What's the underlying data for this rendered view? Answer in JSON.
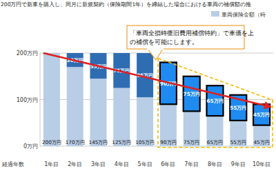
{
  "chart_data": {
    "type": "bar",
    "title": "200万円で新車を購入し、同月に新規契約（保険期間1年）を締結した場合における車両の補償額の推",
    "x_label": "経過年数",
    "categories": [
      "1年目",
      "2年目",
      "3年目",
      "4年目",
      "5年目",
      "6年目",
      "7年目",
      "8年目",
      "9年目",
      "10年目"
    ],
    "series": [
      {
        "name": "車両保険金額（時",
        "color": "#b8cde6",
        "values": [
          200,
          170,
          145,
          125,
          105,
          90,
          75,
          65,
          55,
          45
        ],
        "value_labels": [
          "200万円",
          "170万円",
          "145万円",
          "125万円",
          "105万円",
          "90万円",
          "75万円",
          "65万円",
          "55万円",
          "45万円"
        ]
      },
      {
        "colors": [
          "#2f6db3",
          "#2f6db3",
          "#2f6db3",
          "#2f6db3",
          "#2f6db3",
          "#1f8bf0",
          "#1f8bf0",
          "#1f8bf0",
          "#1f8bf0",
          "#1f8bf0"
        ],
        "values": [
          0,
          30,
          55,
          75,
          95,
          90,
          75,
          65,
          55,
          45
        ],
        "value_labels": [
          null,
          "30万円",
          "55万円",
          "75万円",
          "95万円",
          "90万円",
          "75万円",
          "65万円",
          "55万円",
          "45万円"
        ]
      }
    ],
    "ylim": [
      0,
      200
    ],
    "yticks": [
      {
        "value": 0,
        "label": "0万円"
      },
      {
        "value": 100,
        "label": "100万円"
      },
      {
        "value": 200,
        "label": "200万円"
      }
    ],
    "grid": true,
    "stacked": true,
    "data_labels": true,
    "legend": "top-right",
    "annotations": [
      "「車両全損時復旧費用補償特約」で車価を上",
      "の補償を可能にします。"
    ]
  }
}
